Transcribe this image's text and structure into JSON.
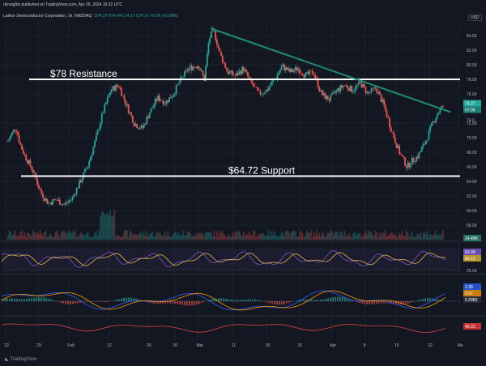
{
  "header": {
    "published": "rkinsights published on TradingView.com, Apr 26, 2024 15:22 UTC"
  },
  "legend": {
    "symbol": "Lattice Semiconductor Corporation, 1h, NASDAQ",
    "ohlc": "O74.27 H74.44 L74.17 C74.27 +0.06 (+0.08%)"
  },
  "currency_label": "USD",
  "footer": {
    "brand": "TradingView"
  },
  "chart_data": {
    "type": "candlestick",
    "timeframe": "1h",
    "ylim": [
      56,
      86
    ],
    "y_ticks": [
      58,
      60,
      62,
      64,
      66,
      68,
      70,
      72,
      76,
      78,
      80,
      82,
      84
    ],
    "x_ticks": [
      "22",
      "29",
      "Feb",
      "12",
      "20",
      "26",
      "Mar",
      "11",
      "18",
      "25",
      "Apr",
      "8",
      "15",
      "22",
      "Ma"
    ],
    "price_tags": {
      "last": "74.27",
      "sub": "07:06",
      "prev": "74.0"
    },
    "price_path": [
      [
        0.4,
        69.5
      ],
      [
        0.9,
        71.5
      ],
      [
        1.2,
        69.0
      ],
      [
        1.5,
        67.5
      ],
      [
        2.0,
        65.5
      ],
      [
        2.5,
        62.5
      ],
      [
        3.0,
        61.0
      ],
      [
        3.5,
        61.5
      ],
      [
        4.0,
        60.8
      ],
      [
        4.5,
        61.6
      ],
      [
        5.0,
        63.8
      ],
      [
        5.5,
        66.0
      ],
      [
        6.0,
        69.5
      ],
      [
        6.5,
        73.5
      ],
      [
        7.0,
        76.5
      ],
      [
        7.5,
        77.2
      ],
      [
        8.0,
        74.5
      ],
      [
        8.5,
        72.0
      ],
      [
        9.0,
        71.2
      ],
      [
        9.5,
        73.5
      ],
      [
        10.0,
        75.5
      ],
      [
        10.5,
        74.8
      ],
      [
        11.0,
        76.0
      ],
      [
        11.5,
        78.0
      ],
      [
        12.0,
        79.5
      ],
      [
        12.6,
        80.0
      ],
      [
        13.0,
        78.0
      ],
      [
        13.3,
        83.5
      ],
      [
        13.6,
        84.8
      ],
      [
        14.0,
        81.5
      ],
      [
        14.5,
        79.0
      ],
      [
        15.0,
        78.5
      ],
      [
        15.5,
        79.5
      ],
      [
        16.0,
        77.5
      ],
      [
        16.5,
        76.0
      ],
      [
        17.0,
        76.5
      ],
      [
        17.5,
        78.0
      ],
      [
        18.0,
        79.8
      ],
      [
        18.5,
        79.0
      ],
      [
        19.0,
        79.5
      ],
      [
        19.5,
        78.5
      ],
      [
        20.0,
        79.0
      ],
      [
        20.5,
        76.0
      ],
      [
        21.0,
        75.2
      ],
      [
        21.5,
        76.5
      ],
      [
        22.0,
        77.2
      ],
      [
        22.5,
        76.5
      ],
      [
        23.0,
        77.5
      ],
      [
        23.5,
        76.0
      ],
      [
        24.0,
        76.8
      ],
      [
        24.5,
        74.5
      ],
      [
        25.0,
        71.0
      ],
      [
        25.5,
        68.0
      ],
      [
        26.0,
        66.0
      ],
      [
        26.3,
        66.8
      ],
      [
        26.7,
        67.5
      ],
      [
        27.2,
        69.5
      ],
      [
        27.6,
        71.8
      ],
      [
        28.0,
        73.5
      ],
      [
        28.3,
        74.27
      ]
    ],
    "volume_spike_days": [
      6.8
    ],
    "annotations": [
      {
        "text": "$78 Resistance",
        "kind": "horizontal-line",
        "y": 78.0
      },
      {
        "text": "$64.72 Support",
        "kind": "horizontal-line",
        "y": 64.72
      },
      {
        "text": "",
        "kind": "trendline",
        "from": [
          13.4,
          85.0
        ],
        "to": [
          28.8,
          73.5
        ]
      }
    ],
    "indicators": {
      "rsi_tags": [
        "63.99",
        "66.13"
      ],
      "rsi_tick": "25.00",
      "macd_tags": [
        "1.39",
        "0.97",
        "0.2983"
      ],
      "third_tag": "40.31",
      "volume_tag": "14.49K"
    },
    "grid": true,
    "colors": {
      "up": "#26a69a",
      "down": "#ef5350",
      "trendline": "#1e8c74",
      "annotation": "#ffffff",
      "rsi": "#7e57c2",
      "rsi_ma": "#e5b94b",
      "last_price_tag": "#26a69a",
      "macd_line": "#2962ff",
      "signal_line": "#ff9800",
      "third_line": "#e0413f"
    }
  }
}
